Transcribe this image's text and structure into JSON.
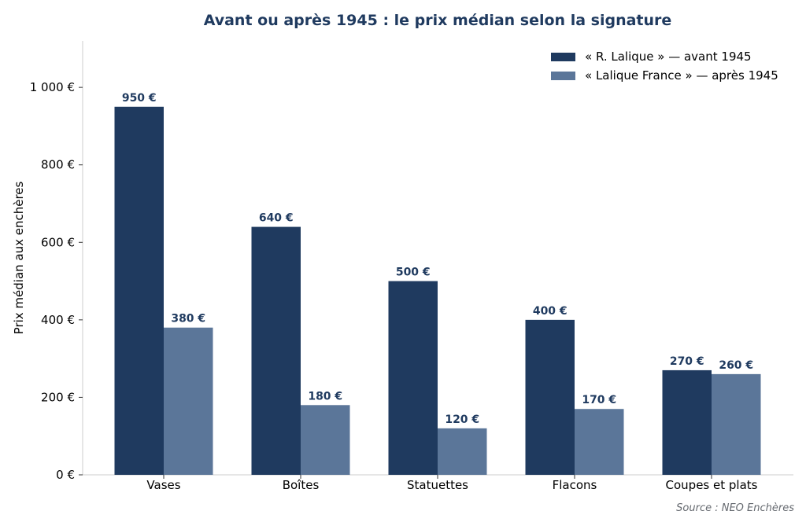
{
  "chart_data": {
    "type": "bar",
    "title": "Avant ou après 1945 : le prix médian selon la signature",
    "xlabel": "",
    "ylabel": "Prix médian aux enchères",
    "categories": [
      "Vases",
      "Boîtes",
      "Statuettes",
      "Flacons",
      "Coupes et plats"
    ],
    "series": [
      {
        "name": "« R. Lalique » — avant 1945",
        "color": "#1f3a5f",
        "values": [
          950,
          640,
          500,
          400,
          270
        ],
        "labels": [
          "950 €",
          "640 €",
          "500 €",
          "400 €",
          "270 €"
        ]
      },
      {
        "name": "« Lalique France » — après 1945",
        "color": "#5b7699",
        "values": [
          380,
          180,
          120,
          170,
          260
        ],
        "labels": [
          "380 €",
          "180 €",
          "120 €",
          "170 €",
          "260 €"
        ]
      }
    ],
    "ylim": [
      0,
      1120
    ],
    "yticks": [
      0,
      200,
      400,
      600,
      800,
      1000
    ],
    "ytick_labels": [
      "0 €",
      "200 €",
      "400 €",
      "600 €",
      "800 €",
      "1 000 €"
    ],
    "grid": false,
    "legend_position": "top-right",
    "source": "Source : NEO Enchères"
  }
}
